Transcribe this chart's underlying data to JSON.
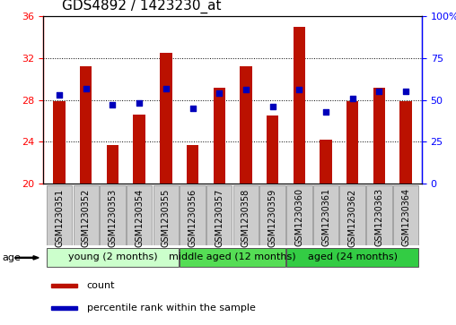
{
  "title": "GDS4892 / 1423230_at",
  "samples": [
    "GSM1230351",
    "GSM1230352",
    "GSM1230353",
    "GSM1230354",
    "GSM1230355",
    "GSM1230356",
    "GSM1230357",
    "GSM1230358",
    "GSM1230359",
    "GSM1230360",
    "GSM1230361",
    "GSM1230362",
    "GSM1230363",
    "GSM1230364"
  ],
  "counts": [
    27.9,
    31.2,
    23.7,
    26.6,
    32.5,
    23.7,
    29.2,
    31.2,
    26.5,
    35.0,
    24.2,
    27.9,
    29.2,
    27.9
  ],
  "percentiles": [
    53,
    57,
    47,
    48,
    57,
    45,
    54,
    56,
    46,
    56,
    43,
    51,
    55,
    55
  ],
  "ylim_left": [
    20,
    36
  ],
  "ylim_right": [
    0,
    100
  ],
  "yticks_left": [
    20,
    24,
    28,
    32,
    36
  ],
  "yticks_right": [
    0,
    25,
    50,
    75,
    100
  ],
  "ytick_right_labels": [
    "0",
    "25",
    "50",
    "75",
    "100%"
  ],
  "bar_color": "#bb1100",
  "dot_color": "#0000bb",
  "groups": [
    {
      "label": "young (2 months)",
      "start": 0,
      "end": 5,
      "color": "#ccffcc"
    },
    {
      "label": "middle aged (12 months)",
      "start": 5,
      "end": 9,
      "color": "#55dd55"
    },
    {
      "label": "aged (24 months)",
      "start": 9,
      "end": 14,
      "color": "#33cc44"
    }
  ],
  "age_label": "age",
  "legend": [
    {
      "label": "count",
      "color": "#bb1100"
    },
    {
      "label": "percentile rank within the sample",
      "color": "#0000bb"
    }
  ],
  "bar_bottom": 20,
  "bar_width": 0.45,
  "title_fontsize": 11,
  "label_fontsize": 8,
  "sample_fontsize": 7,
  "group_fontsize": 8,
  "legend_fontsize": 8,
  "tick_fontsize": 8,
  "sample_box_color": "#cccccc",
  "sample_box_edge": "#888888",
  "bg_color": "#ffffff",
  "plot_bg": "#ffffff",
  "spine_color": "black",
  "grid_color": "black",
  "grid_style": ":"
}
